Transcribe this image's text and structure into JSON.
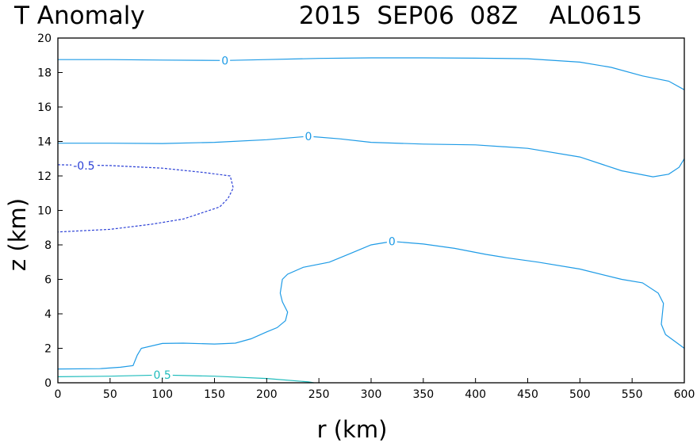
{
  "chart_data": {
    "type": "contour",
    "title_left": "T Anomaly",
    "title_right": "2015  SEP06  08Z    AL0615",
    "xlabel": "r (km)",
    "ylabel": "z (km)",
    "xlim": [
      0,
      600
    ],
    "ylim": [
      0,
      20
    ],
    "xticks": [
      "0",
      "50",
      "100",
      "150",
      "200",
      "250",
      "300",
      "350",
      "400",
      "450",
      "500",
      "550",
      "600"
    ],
    "yticks": [
      "0",
      "2",
      "4",
      "6",
      "8",
      "10",
      "12",
      "14",
      "16",
      "18",
      "20"
    ],
    "grid": false,
    "contours": [
      {
        "level": "0",
        "color": "#1e9be6",
        "dashed": false,
        "label_at": [
          160,
          18.7
        ],
        "points": [
          [
            0,
            18.75
          ],
          [
            50,
            18.75
          ],
          [
            100,
            18.72
          ],
          [
            160,
            18.7
          ],
          [
            200,
            18.75
          ],
          [
            250,
            18.82
          ],
          [
            300,
            18.85
          ],
          [
            350,
            18.85
          ],
          [
            400,
            18.83
          ],
          [
            450,
            18.8
          ],
          [
            500,
            18.6
          ],
          [
            530,
            18.3
          ],
          [
            560,
            17.8
          ],
          [
            585,
            17.5
          ],
          [
            600,
            17.0
          ]
        ]
      },
      {
        "level": "0",
        "color": "#1e9be6",
        "dashed": false,
        "label_at": [
          240,
          14.3
        ],
        "points": [
          [
            0,
            13.9
          ],
          [
            50,
            13.9
          ],
          [
            100,
            13.88
          ],
          [
            150,
            13.95
          ],
          [
            200,
            14.1
          ],
          [
            240,
            14.3
          ],
          [
            270,
            14.15
          ],
          [
            300,
            13.95
          ],
          [
            350,
            13.85
          ],
          [
            400,
            13.8
          ],
          [
            450,
            13.6
          ],
          [
            500,
            13.1
          ],
          [
            540,
            12.3
          ],
          [
            570,
            11.95
          ],
          [
            585,
            12.1
          ],
          [
            595,
            12.5
          ],
          [
            600,
            13.0
          ]
        ]
      },
      {
        "level": "0",
        "color": "#1e9be6",
        "dashed": false,
        "label_at": [
          320,
          8.2
        ],
        "points": [
          [
            0,
            0.8
          ],
          [
            40,
            0.82
          ],
          [
            60,
            0.9
          ],
          [
            72,
            1.0
          ],
          [
            76,
            1.6
          ],
          [
            80,
            2.0
          ],
          [
            100,
            2.28
          ],
          [
            120,
            2.3
          ],
          [
            150,
            2.25
          ],
          [
            170,
            2.3
          ],
          [
            185,
            2.55
          ],
          [
            200,
            2.95
          ],
          [
            210,
            3.2
          ],
          [
            218,
            3.6
          ],
          [
            220,
            4.1
          ],
          [
            215,
            4.7
          ],
          [
            213,
            5.2
          ],
          [
            215,
            6.0
          ],
          [
            220,
            6.3
          ],
          [
            235,
            6.7
          ],
          [
            260,
            7.0
          ],
          [
            280,
            7.5
          ],
          [
            300,
            8.0
          ],
          [
            320,
            8.2
          ],
          [
            350,
            8.05
          ],
          [
            380,
            7.8
          ],
          [
            410,
            7.45
          ],
          [
            430,
            7.25
          ],
          [
            460,
            7.0
          ],
          [
            500,
            6.6
          ],
          [
            540,
            6.0
          ],
          [
            560,
            5.8
          ],
          [
            575,
            5.2
          ],
          [
            580,
            4.6
          ],
          [
            578,
            3.4
          ],
          [
            582,
            2.8
          ],
          [
            600,
            2.0
          ]
        ]
      },
      {
        "level": "-0.5",
        "color": "#2b40d6",
        "dashed": true,
        "label_at": [
          25,
          12.6
        ],
        "points": [
          [
            0,
            12.65
          ],
          [
            50,
            12.6
          ],
          [
            100,
            12.45
          ],
          [
            140,
            12.2
          ],
          [
            165,
            12.0
          ],
          [
            168,
            11.3
          ],
          [
            163,
            10.7
          ],
          [
            155,
            10.2
          ],
          [
            140,
            9.9
          ],
          [
            120,
            9.5
          ],
          [
            90,
            9.2
          ],
          [
            50,
            8.9
          ],
          [
            0,
            8.75
          ]
        ]
      },
      {
        "level": "0.5",
        "color": "#1fbcbc",
        "dashed": false,
        "label_at": [
          100,
          0.45
        ],
        "points": [
          [
            0,
            0.35
          ],
          [
            50,
            0.38
          ],
          [
            100,
            0.45
          ],
          [
            150,
            0.38
          ],
          [
            200,
            0.25
          ],
          [
            240,
            0.05
          ],
          [
            245,
            0.0
          ]
        ]
      }
    ]
  }
}
